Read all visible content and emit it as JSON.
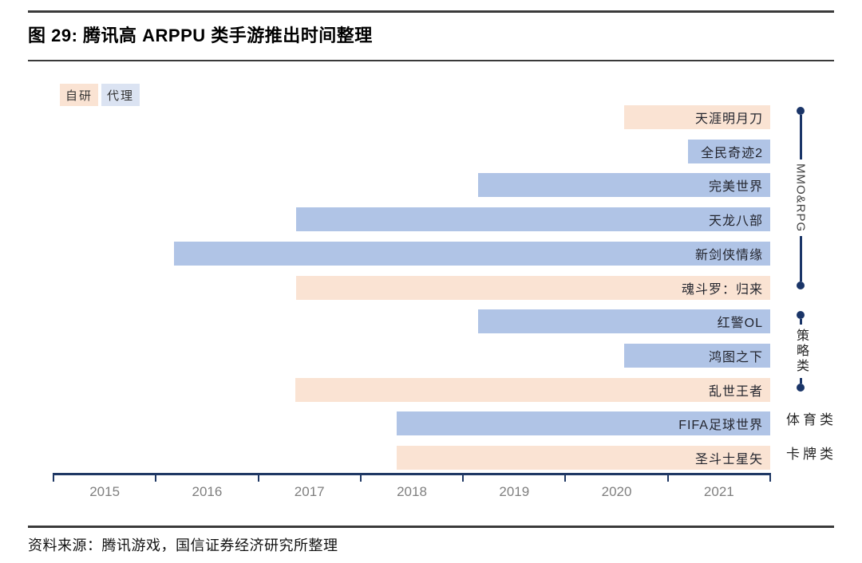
{
  "header": {
    "title": "图 29: 腾讯高 ARPPU 类手游推出时间整理"
  },
  "footer": {
    "source": "资料来源：腾讯游戏，国信证券经济研究所整理"
  },
  "colors": {
    "self_dev": "#FAE3D3",
    "licensed_bar": "#B0C4E6",
    "licensed_chip": "#DBE3F2",
    "axis_navy": "#1F3864",
    "bracket_navy": "#1A3568",
    "year_label_gray": "#7F7F7F"
  },
  "chart_data": {
    "type": "bar",
    "subtype": "horizontal-timeline-gantt",
    "title": "图 29: 腾讯高 ARPPU 类手游推出时间整理",
    "xlabel": "",
    "ylabel": "",
    "xlim": [
      2015,
      2022
    ],
    "x_tick_years": [
      2015,
      2016,
      2017,
      2018,
      2019,
      2020,
      2021
    ],
    "grid": false,
    "legend_position": "top-left",
    "legend": [
      {
        "label": "自研",
        "color": "#FAE3D3",
        "chip_color": "#FAE3D3"
      },
      {
        "label": "代理",
        "color": "#B0C4E6",
        "chip_color": "#DBE3F2"
      }
    ],
    "bars": [
      {
        "name": "天涯明月刀",
        "type": "自研",
        "start": 2020.57,
        "end": 2022,
        "category": "MMO&RPG"
      },
      {
        "name": "全民奇迹2",
        "type": "代理",
        "start": 2021.2,
        "end": 2022,
        "category": "MMO&RPG"
      },
      {
        "name": "完美世界",
        "type": "代理",
        "start": 2019.15,
        "end": 2022,
        "category": "MMO&RPG"
      },
      {
        "name": "天龙八部",
        "type": "代理",
        "start": 2017.37,
        "end": 2022,
        "category": "MMO&RPG"
      },
      {
        "name": "新剑侠情缘",
        "type": "代理",
        "start": 2016.18,
        "end": 2022,
        "category": "MMO&RPG"
      },
      {
        "name": "魂斗罗：归来",
        "type": "自研",
        "start": 2017.37,
        "end": 2022,
        "category": "MMO&RPG"
      },
      {
        "name": "红警OL",
        "type": "代理",
        "start": 2019.15,
        "end": 2022,
        "category": "策略类"
      },
      {
        "name": "鸿图之下",
        "type": "代理",
        "start": 2020.57,
        "end": 2022,
        "category": "策略类"
      },
      {
        "name": "乱世王者",
        "type": "自研",
        "start": 2017.36,
        "end": 2022,
        "category": "策略类"
      },
      {
        "name": "FIFA足球世界",
        "type": "代理",
        "start": 2018.35,
        "end": 2022,
        "category": "体育类"
      },
      {
        "name": "圣斗士星矢",
        "type": "自研",
        "start": 2018.35,
        "end": 2022,
        "category": "卡牌类"
      }
    ],
    "category_annotations": [
      {
        "label": "MMO&RPG",
        "row_start": 0,
        "row_end": 5,
        "style": "bracket",
        "text_mode": "rotated-latin"
      },
      {
        "label": "策略类",
        "row_start": 6,
        "row_end": 8,
        "style": "bracket",
        "text_mode": "stacked-cjk"
      },
      {
        "label": "体育类",
        "row_start": 9,
        "row_end": 9,
        "style": "text"
      },
      {
        "label": "卡牌类",
        "row_start": 10,
        "row_end": 10,
        "style": "text"
      }
    ]
  }
}
